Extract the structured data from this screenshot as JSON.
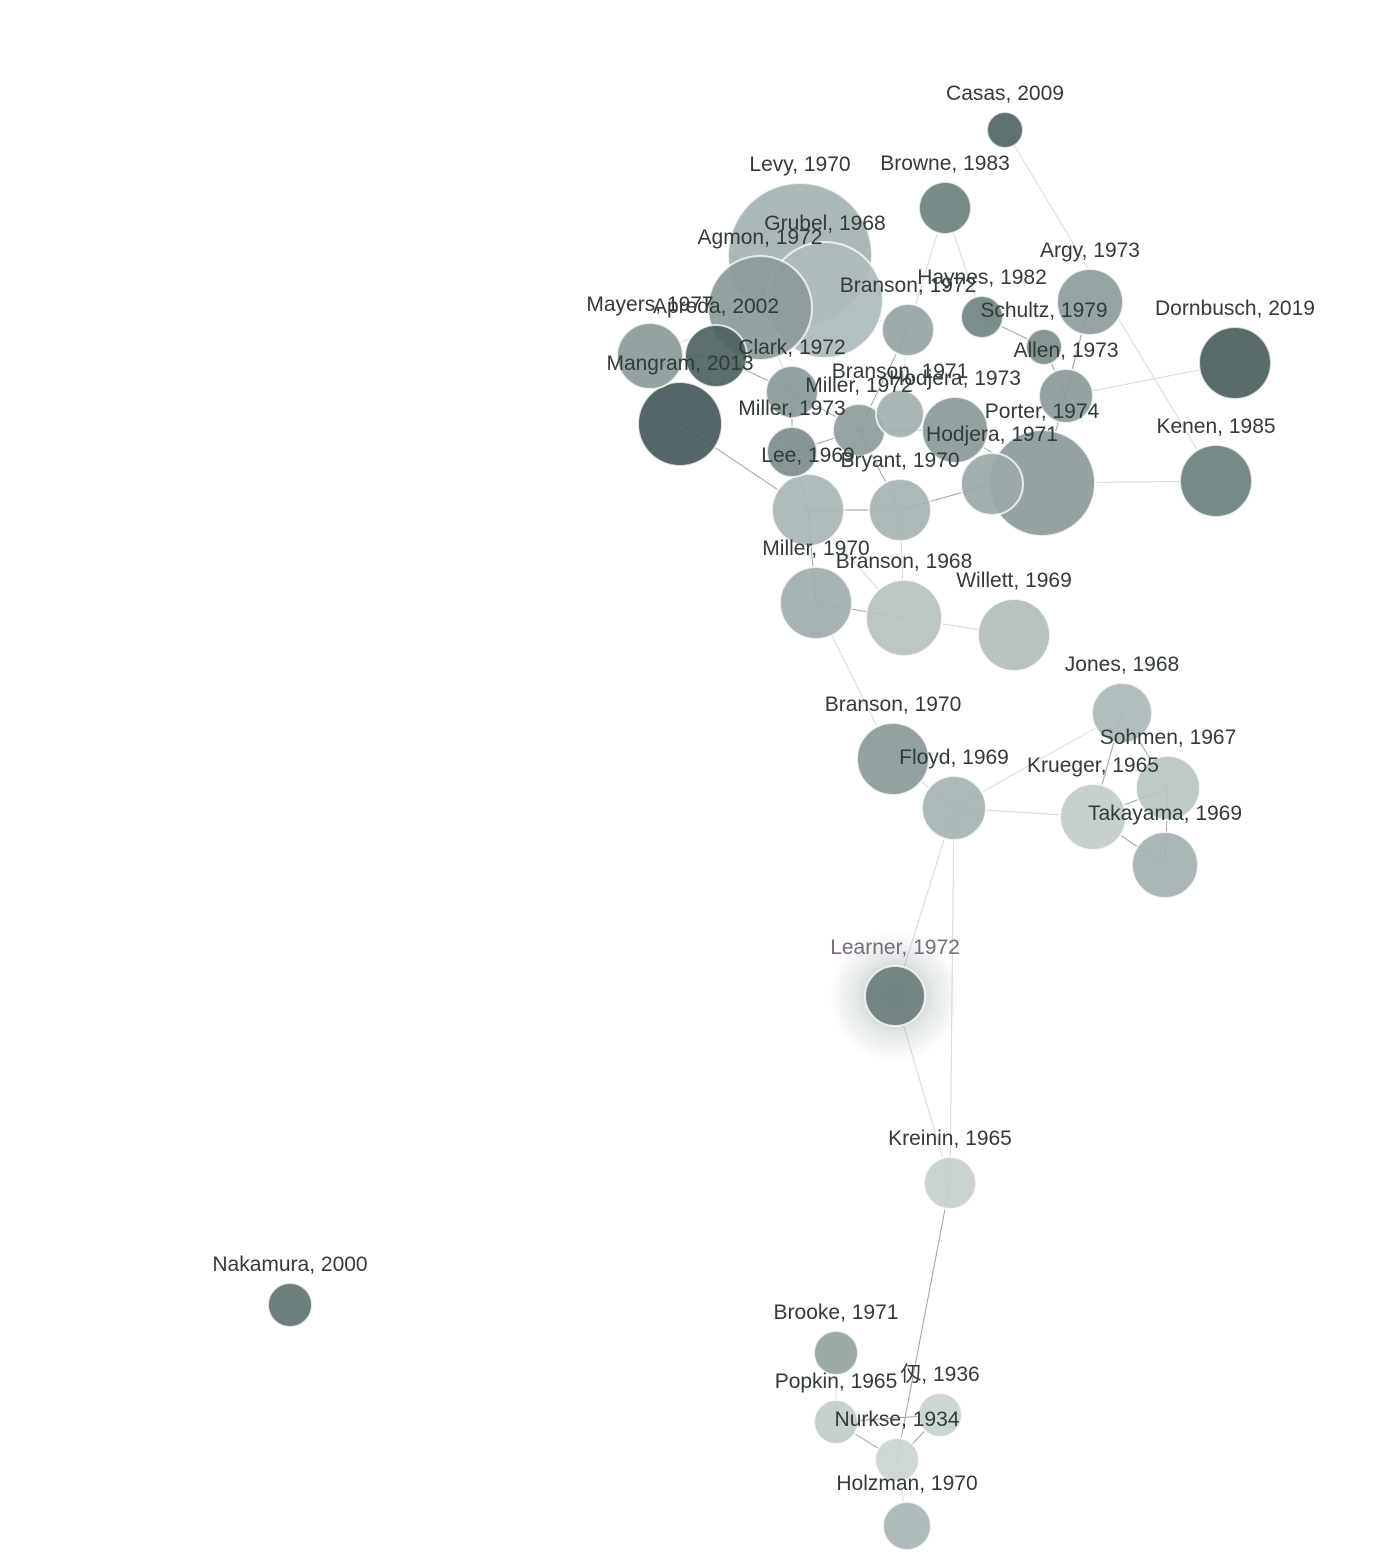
{
  "colors": {
    "focus_ring": "#7d6a80",
    "edge": "#9aa8a6",
    "edge_faint": "#d3dbda",
    "label": "#333a3a"
  },
  "nodes": [
    {
      "id": "casas2009",
      "label": "Casas, 2009",
      "shade": "#4f6562"
    },
    {
      "id": "browne1983",
      "label": "Browne, 1983",
      "shade": "#6b817f"
    },
    {
      "id": "levy1970",
      "label": "Levy, 1970",
      "shade": "#a5b2b1"
    },
    {
      "id": "grubel1968",
      "label": "Grubel, 1968",
      "shade": "#aebbba"
    },
    {
      "id": "agmon1972",
      "label": "Agmon, 1972",
      "shade": "#8b9b99"
    },
    {
      "id": "branson1972",
      "label": "Branson, 1972",
      "shade": "#95a4a3"
    },
    {
      "id": "haynes1982",
      "label": "Haynes, 1982",
      "shade": "#6f8482"
    },
    {
      "id": "argy1973",
      "label": "Argy, 1973",
      "shade": "#8d9c9b"
    },
    {
      "id": "schultz1979",
      "label": "Schultz, 1979",
      "shade": "#7b8e8c"
    },
    {
      "id": "dornbusch2019",
      "label": "Dornbusch, 2019",
      "shade": "#4a5f5d"
    },
    {
      "id": "mayers1977",
      "label": "Mayers, 1977",
      "shade": "#8a9b99"
    },
    {
      "id": "apreda2002",
      "label": "Apreda, 2002",
      "shade": "#4d6360"
    },
    {
      "id": "clark1972",
      "label": "Clark, 1972",
      "shade": "#8a9a98"
    },
    {
      "id": "mangram2013",
      "label": "Mangram, 2013",
      "shade": "#45595a"
    },
    {
      "id": "branson1971",
      "label": "Branson, 1971",
      "shade": "#a2b0af"
    },
    {
      "id": "allen1973",
      "label": "Allen, 1973",
      "shade": "#8a9b99"
    },
    {
      "id": "miller1972",
      "label": "Miller, 1972",
      "shade": "#8d9d9b"
    },
    {
      "id": "hodjera1973",
      "label": "Hodjera, 1973",
      "shade": "#8a9a99"
    },
    {
      "id": "miller1973",
      "label": "Miller, 1973",
      "shade": "#7b8d8c"
    },
    {
      "id": "kenen1985",
      "label": "Kenen, 1985",
      "shade": "#6b807e"
    },
    {
      "id": "hodjera1971",
      "label": "Hodjera, 1971",
      "shade": "#9aa8a7"
    },
    {
      "id": "porter1974",
      "label": "Porter, 1974",
      "shade": "#8b9b9a"
    },
    {
      "id": "lee1969",
      "label": "Lee, 1969",
      "shade": "#a9b6b5"
    },
    {
      "id": "bryant1970",
      "label": "Bryant, 1970",
      "shade": "#a5b3b2"
    },
    {
      "id": "miller1970",
      "label": "Miller, 1970",
      "shade": "#9fadac"
    },
    {
      "id": "branson1968",
      "label": "Branson, 1968",
      "shade": "#b5c1c0"
    },
    {
      "id": "willett1969",
      "label": "Willett, 1969",
      "shade": "#b1bdbc"
    },
    {
      "id": "jones1968",
      "label": "Jones, 1968",
      "shade": "#abb8b7"
    },
    {
      "id": "branson1970",
      "label": "Branson, 1970",
      "shade": "#899a98"
    },
    {
      "id": "sohmen1967",
      "label": "Sohmen, 1967",
      "shade": "#b9c4c3"
    },
    {
      "id": "floyd1969",
      "label": "Floyd, 1969",
      "shade": "#a6b3b2"
    },
    {
      "id": "krueger1965",
      "label": "Krueger, 1965",
      "shade": "#c2cccb"
    },
    {
      "id": "takayama1969",
      "label": "Takayama, 1969",
      "shade": "#a4b1b0"
    },
    {
      "id": "learner1972",
      "label": "Learner, 1972",
      "shade": "#6b7f7d",
      "focus": true
    },
    {
      "id": "kreinin1965",
      "label": "Kreinin, 1965",
      "shade": "#c5cfce"
    },
    {
      "id": "nakamura2000",
      "label": "Nakamura, 2000",
      "shade": "#5f7472"
    },
    {
      "id": "brooke1971",
      "label": "Brooke, 1971",
      "shade": "#92a2a0"
    },
    {
      "id": "popkin1965",
      "label": "Popkin, 1965",
      "shade": "#c2cccb"
    },
    {
      "id": "x1936",
      "label": "仭, 1936",
      "shade": "#c9d2d1"
    },
    {
      "id": "nurkse1934",
      "label": "Nurkse, 1934",
      "shade": "#ccd5d4"
    },
    {
      "id": "holzman1970",
      "label": "Holzman, 1970",
      "shade": "#a8b5b4"
    }
  ],
  "edges": [
    [
      "casas2009",
      "kenen1985",
      "faint"
    ],
    [
      "browne1983",
      "branson1972",
      "faint"
    ],
    [
      "browne1983",
      "haynes1982",
      "faint"
    ],
    [
      "levy1970",
      "grubel1968",
      "faint"
    ],
    [
      "levy1970",
      "agmon1972",
      "faint"
    ],
    [
      "grubel1968",
      "branson1972",
      "faint"
    ],
    [
      "agmon1972",
      "mayers1977",
      "faint"
    ],
    [
      "agmon1972",
      "clark1972",
      "faint"
    ],
    [
      "mayers1977",
      "apreda2002",
      "normal"
    ],
    [
      "mayers1977",
      "mangram2013",
      "faint"
    ],
    [
      "apreda2002",
      "clark1972",
      "normal"
    ],
    [
      "clark1972",
      "miller1973",
      "normal"
    ],
    [
      "clark1972",
      "miller1972",
      "normal"
    ],
    [
      "miller1973",
      "lee1969",
      "normal"
    ],
    [
      "miller1973",
      "miller1972",
      "normal"
    ],
    [
      "miller1972",
      "hodjera1973",
      "normal"
    ],
    [
      "miller1972",
      "bryant1970",
      "normal"
    ],
    [
      "branson1972",
      "miller1972",
      "normal"
    ],
    [
      "branson1972",
      "branson1971",
      "faint"
    ],
    [
      "haynes1982",
      "schultz1979",
      "normal"
    ],
    [
      "schultz1979",
      "allen1973",
      "normal"
    ],
    [
      "argy1973",
      "allen1973",
      "faint"
    ],
    [
      "argy1973",
      "porter1974",
      "normal"
    ],
    [
      "allen1973",
      "dornbusch2019",
      "faint"
    ],
    [
      "allen1973",
      "porter1974",
      "faint"
    ],
    [
      "hodjera1973",
      "porter1974",
      "normal"
    ],
    [
      "hodjera1973",
      "hodjera1971",
      "faint"
    ],
    [
      "hodjera1971",
      "porter1974",
      "normal"
    ],
    [
      "porter1974",
      "kenen1985",
      "faint"
    ],
    [
      "bryant1970",
      "hodjera1971",
      "normal"
    ],
    [
      "lee1969",
      "bryant1970",
      "normal"
    ],
    [
      "lee1969",
      "miller1970",
      "normal"
    ],
    [
      "lee1969",
      "mangram2013",
      "normal"
    ],
    [
      "lee1969",
      "branson1968",
      "faint"
    ],
    [
      "miller1970",
      "branson1968",
      "normal"
    ],
    [
      "branson1968",
      "willett1969",
      "faint"
    ],
    [
      "branson1968",
      "bryant1970",
      "faint"
    ],
    [
      "miller1970",
      "branson1970",
      "faint"
    ],
    [
      "branson1970",
      "floyd1969",
      "faint"
    ],
    [
      "floyd1969",
      "krueger1965",
      "faint"
    ],
    [
      "floyd1969",
      "jones1968",
      "faint"
    ],
    [
      "jones1968",
      "sohmen1967",
      "normal"
    ],
    [
      "jones1968",
      "krueger1965",
      "normal"
    ],
    [
      "sohmen1967",
      "krueger1965",
      "normal"
    ],
    [
      "sohmen1967",
      "takayama1969",
      "normal"
    ],
    [
      "krueger1965",
      "takayama1969",
      "normal"
    ],
    [
      "floyd1969",
      "learner1972",
      "faint"
    ],
    [
      "learner1972",
      "kreinin1965",
      "faint"
    ],
    [
      "floyd1969",
      "kreinin1965",
      "faint"
    ],
    [
      "kreinin1965",
      "nurkse1934",
      "normal"
    ],
    [
      "popkin1965",
      "x1936",
      "normal"
    ],
    [
      "popkin1965",
      "nurkse1934",
      "normal"
    ],
    [
      "x1936",
      "nurkse1934",
      "normal"
    ],
    [
      "nurkse1934",
      "holzman1970",
      "faint"
    ],
    [
      "brooke1971",
      "popkin1965",
      "faint"
    ]
  ]
}
